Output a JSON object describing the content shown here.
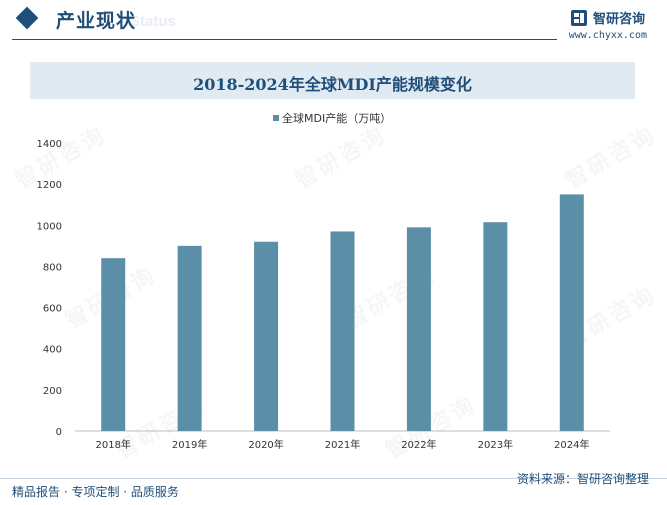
{
  "header": {
    "section_title": "产业现状",
    "ghost_text": "Status",
    "brand_name": "智研咨询",
    "brand_url": "www.chyxx.com"
  },
  "colors": {
    "primary": "#1f4e79",
    "bar": "#5b8fa8",
    "band": "#dfeaf3"
  },
  "watermark": {
    "text": "智研咨询"
  },
  "chart_data": {
    "type": "bar",
    "title": "2018-2024年全球MDI产能规模变化",
    "categories": [
      "2018年",
      "2019年",
      "2020年",
      "2021年",
      "2022年",
      "2023年",
      "2024年"
    ],
    "series": [
      {
        "name": "全球MDI产能（万吨）",
        "values": [
          840,
          900,
          920,
          970,
          990,
          1015,
          1150
        ]
      }
    ],
    "ylim": [
      0,
      1400
    ],
    "yticks": [
      0,
      200,
      400,
      600,
      800,
      1000,
      1200,
      1400
    ],
    "legend_position": "top-center",
    "grid": false
  },
  "footer": {
    "left": "精品报告 · 专项定制 · 品质服务",
    "source": "资料来源：智研咨询整理"
  }
}
